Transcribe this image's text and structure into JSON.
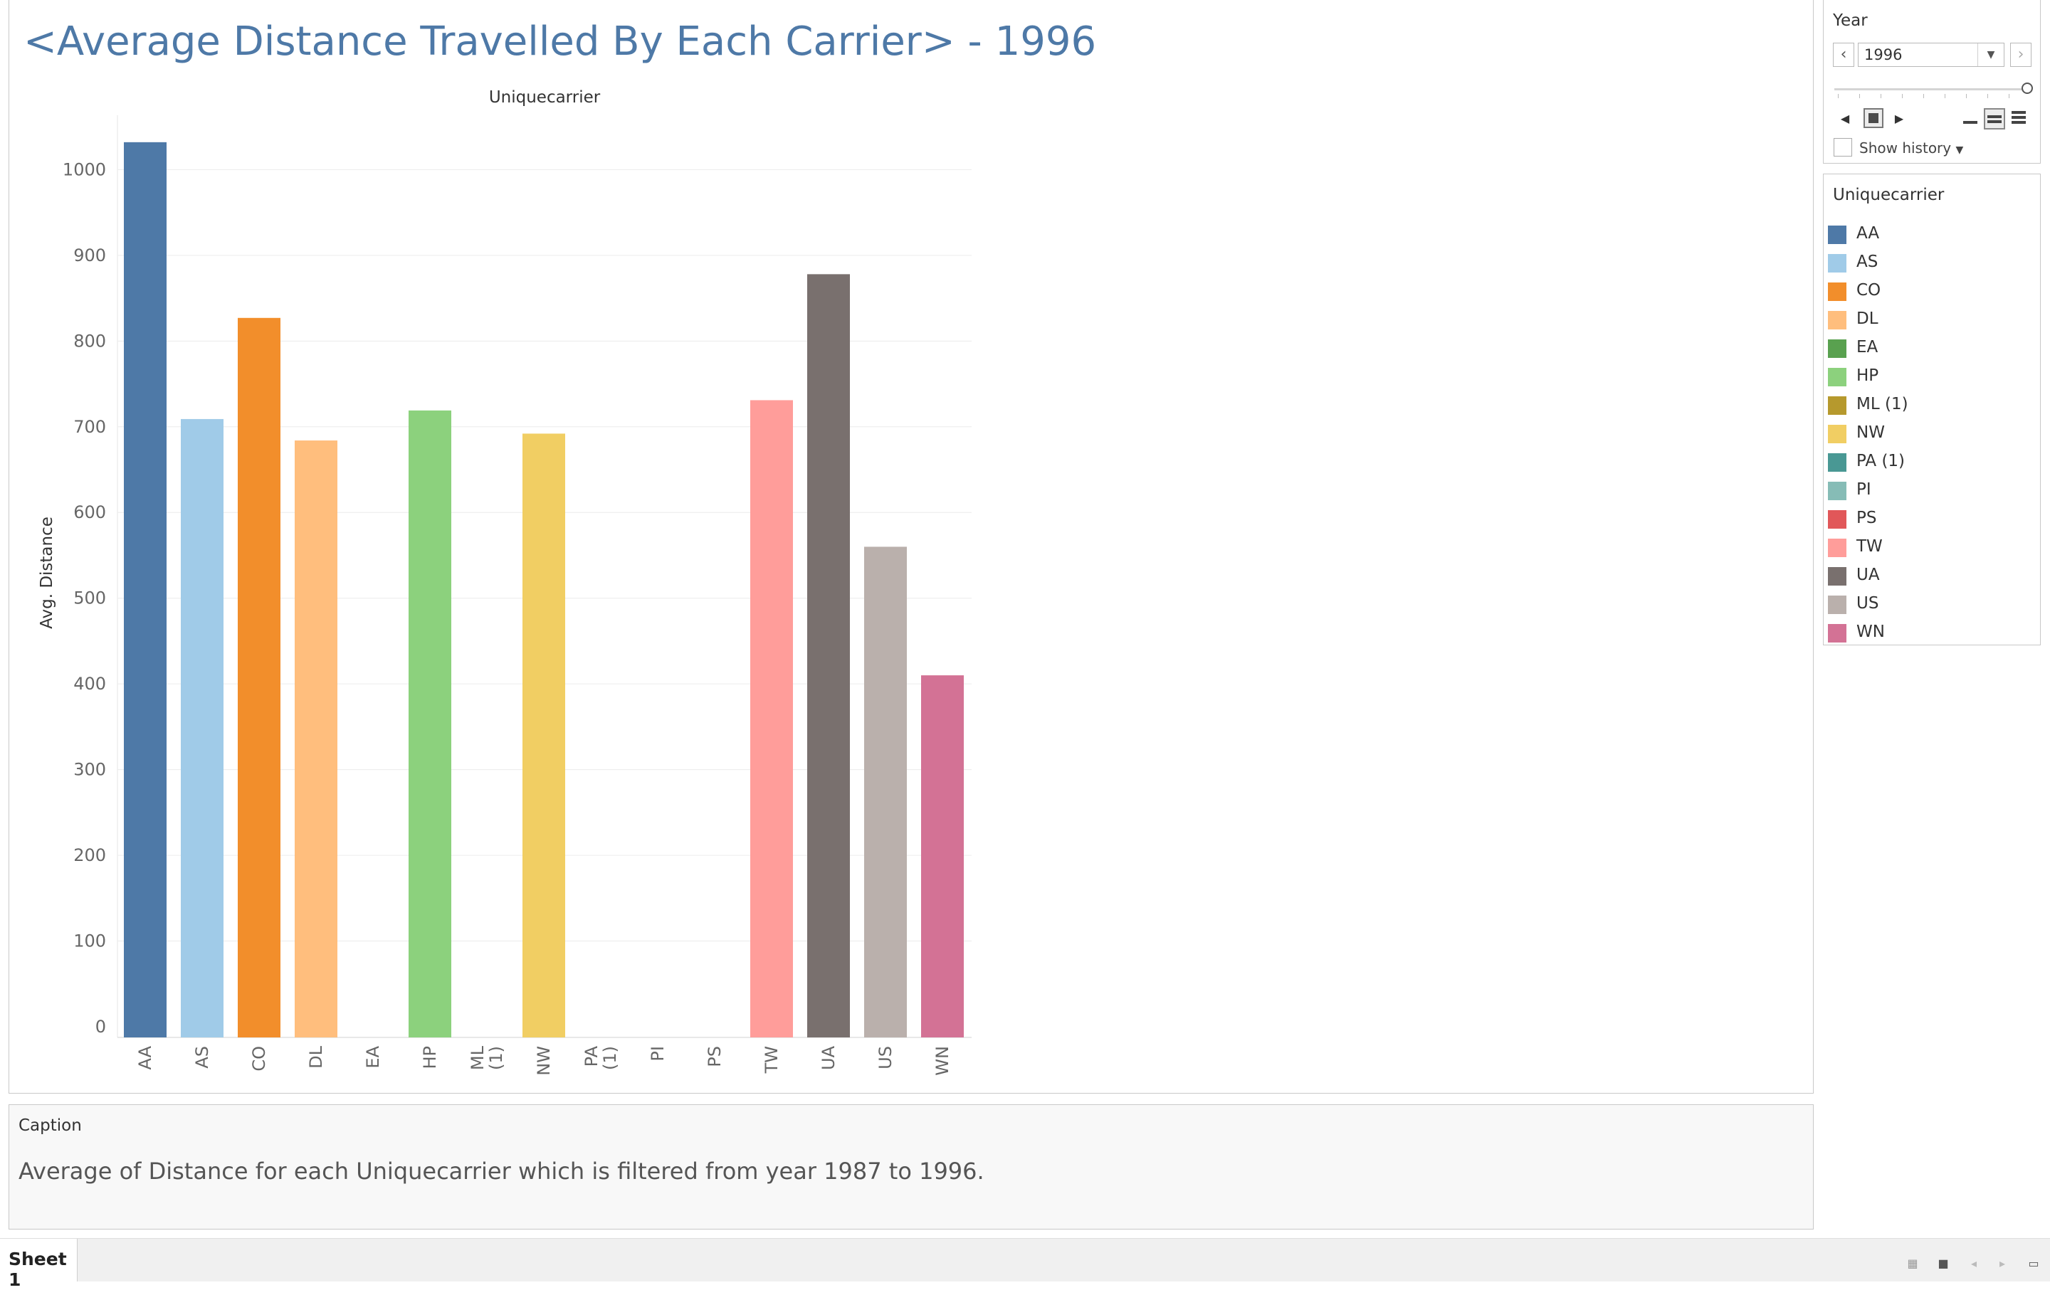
{
  "title": "<Average Distance Travelled By Each Carrier> - 1996",
  "chart_data": {
    "type": "bar",
    "xlabel": "Uniquecarrier",
    "ylabel": "Avg. Distance",
    "ylim": [
      0,
      1050
    ],
    "yticks": [
      0,
      100,
      200,
      300,
      400,
      500,
      600,
      700,
      800,
      900,
      1000
    ],
    "categories": [
      "AA",
      "AS",
      "CO",
      "DL",
      "EA",
      "HP",
      "ML (1)",
      "NW",
      "PA (1)",
      "PI",
      "PS",
      "TW",
      "UA",
      "US",
      "WN"
    ],
    "values": [
      1032,
      709,
      827,
      684,
      null,
      719,
      null,
      692,
      null,
      null,
      null,
      731,
      878,
      560,
      410
    ],
    "colors": [
      "#4e79a7",
      "#a0cbe8",
      "#f28e2b",
      "#ffbe7d",
      "#59a14f",
      "#8cd17d",
      "#b6992d",
      "#f1ce63",
      "#499894",
      "#86bcb6",
      "#e15759",
      "#ff9d9a",
      "#79706e",
      "#bab0ac",
      "#d37295"
    ],
    "grid": true,
    "legend": "right"
  },
  "year_filter": {
    "title": "Year",
    "value": "1996",
    "show_history_label": "Show history"
  },
  "legend": {
    "title": "Uniquecarrier",
    "items": [
      "AA",
      "AS",
      "CO",
      "DL",
      "EA",
      "HP",
      "ML (1)",
      "NW",
      "PA (1)",
      "PI",
      "PS",
      "TW",
      "UA",
      "US",
      "WN"
    ]
  },
  "caption": {
    "header": "Caption",
    "text": "Average of Distance for each Uniquecarrier which is filtered from year 1987 to 1996."
  },
  "sheet_tab": "Sheet 1"
}
